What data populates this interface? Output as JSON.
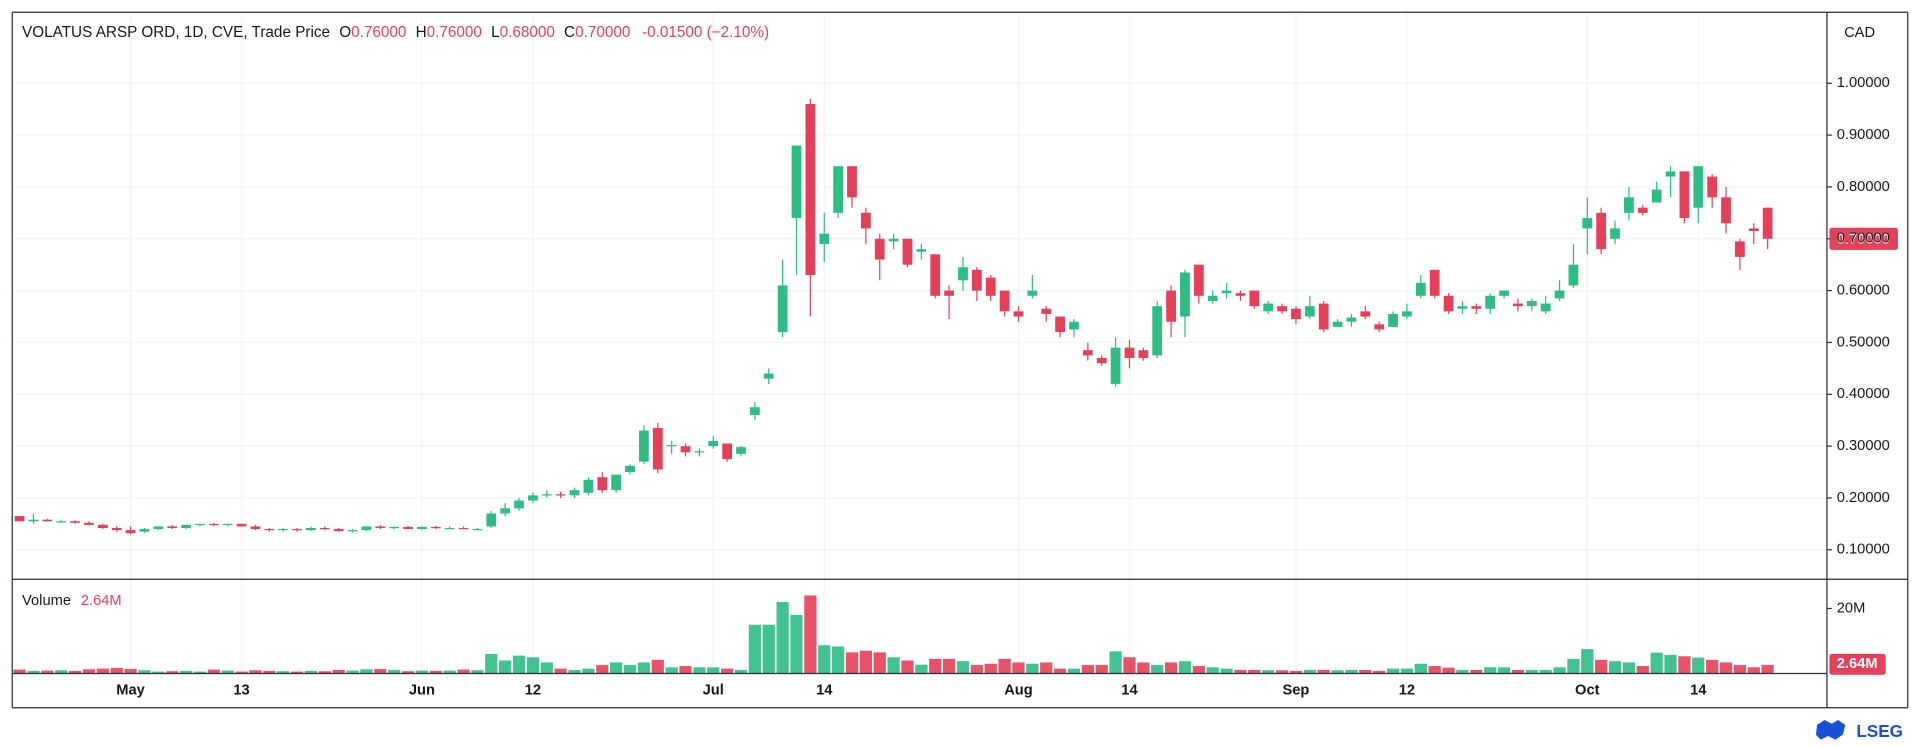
{
  "header": {
    "title": "VOLATUS ARSP ORD, 1D, CVE, Trade Price",
    "open_label": "O",
    "open": "0.76000",
    "high_label": "H",
    "high": "0.76000",
    "low_label": "L",
    "low": "0.68000",
    "close_label": "C",
    "close": "0.70000",
    "change": "-0.01500 (−2.10%)",
    "currency": "CAD",
    "volume_label": "Volume",
    "volume_value": "2.64M",
    "price_badge": "0.70000",
    "brand": "LSEG"
  },
  "chart_data": {
    "type": "candlestick",
    "up_color": "#2ebd85",
    "down_color": "#e5405a",
    "grid": true,
    "categories": [
      null,
      null,
      null,
      null,
      null,
      null,
      null,
      null,
      "May",
      null,
      null,
      null,
      null,
      null,
      null,
      null,
      "13",
      null,
      null,
      null,
      null,
      null,
      null,
      null,
      null,
      null,
      null,
      null,
      null,
      "Jun",
      null,
      null,
      null,
      null,
      null,
      null,
      null,
      "12",
      null,
      null,
      null,
      null,
      null,
      null,
      null,
      null,
      null,
      null,
      null,
      null,
      "Jul",
      null,
      null,
      null,
      null,
      null,
      null,
      null,
      "14",
      null,
      null,
      null,
      null,
      null,
      null,
      null,
      null,
      null,
      null,
      null,
      null,
      null,
      "Aug",
      null,
      null,
      null,
      null,
      null,
      null,
      null,
      "14",
      null,
      null,
      null,
      null,
      null,
      null,
      null,
      null,
      null,
      null,
      null,
      "Sep",
      null,
      null,
      null,
      null,
      null,
      null,
      null,
      "12",
      null,
      null,
      null,
      null,
      null,
      null,
      null,
      null,
      null,
      null,
      null,
      null,
      "Oct",
      null,
      null,
      null,
      null,
      null,
      null,
      null,
      "14",
      null,
      null,
      null,
      null,
      null
    ],
    "open": [
      0.165,
      0.155,
      0.158,
      0.155,
      0.155,
      0.152,
      0.148,
      0.142,
      0.138,
      0.135,
      0.14,
      0.145,
      0.142,
      0.148,
      0.15,
      0.148,
      0.15,
      0.145,
      0.14,
      0.138,
      0.14,
      0.138,
      0.142,
      0.14,
      0.136,
      0.138,
      0.145,
      0.142,
      0.144,
      0.14,
      0.144,
      0.142,
      0.142,
      0.14,
      0.145,
      0.17,
      0.18,
      0.195,
      0.205,
      0.207,
      0.205,
      0.21,
      0.24,
      0.215,
      0.25,
      0.27,
      0.335,
      0.3,
      0.3,
      0.288,
      0.3,
      0.305,
      0.285,
      0.36,
      0.43,
      0.52,
      0.74,
      0.96,
      0.69,
      0.75,
      0.84,
      0.75,
      0.7,
      0.695,
      0.7,
      0.675,
      0.67,
      0.6,
      0.62,
      0.64,
      0.625,
      0.6,
      0.56,
      0.59,
      0.565,
      0.55,
      0.525,
      0.485,
      0.47,
      0.42,
      0.49,
      0.485,
      0.475,
      0.6,
      0.55,
      0.65,
      0.58,
      0.595,
      0.595,
      0.6,
      0.56,
      0.57,
      0.565,
      0.55,
      0.575,
      0.53,
      0.54,
      0.56,
      0.535,
      0.53,
      0.55,
      0.59,
      0.64,
      0.59,
      0.565,
      0.57,
      0.565,
      0.59,
      0.575,
      0.57,
      0.56,
      0.585,
      0.61,
      0.72,
      0.75,
      0.7,
      0.75,
      0.76,
      0.77,
      0.82,
      0.83,
      0.76,
      0.82,
      0.78,
      0.695,
      0.72,
      0.76
    ],
    "high": [
      0.165,
      0.17,
      0.16,
      0.158,
      0.157,
      0.155,
      0.15,
      0.145,
      0.145,
      0.142,
      0.145,
      0.148,
      0.148,
      0.15,
      0.152,
      0.15,
      0.15,
      0.148,
      0.142,
      0.142,
      0.142,
      0.145,
      0.145,
      0.142,
      0.14,
      0.145,
      0.148,
      0.145,
      0.146,
      0.145,
      0.146,
      0.145,
      0.145,
      0.142,
      0.175,
      0.19,
      0.2,
      0.21,
      0.215,
      0.212,
      0.22,
      0.24,
      0.25,
      0.245,
      0.265,
      0.34,
      0.345,
      0.31,
      0.305,
      0.295,
      0.32,
      0.305,
      0.3,
      0.385,
      0.45,
      0.66,
      0.88,
      0.97,
      0.75,
      0.84,
      0.84,
      0.76,
      0.71,
      0.71,
      0.7,
      0.69,
      0.67,
      0.61,
      0.665,
      0.645,
      0.63,
      0.6,
      0.57,
      0.63,
      0.57,
      0.55,
      0.545,
      0.5,
      0.475,
      0.51,
      0.505,
      0.49,
      0.58,
      0.61,
      0.64,
      0.65,
      0.6,
      0.615,
      0.6,
      0.6,
      0.58,
      0.575,
      0.57,
      0.59,
      0.58,
      0.545,
      0.555,
      0.57,
      0.54,
      0.56,
      0.575,
      0.63,
      0.64,
      0.595,
      0.58,
      0.575,
      0.595,
      0.6,
      0.585,
      0.585,
      0.59,
      0.62,
      0.69,
      0.78,
      0.76,
      0.735,
      0.8,
      0.765,
      0.81,
      0.84,
      0.83,
      0.84,
      0.825,
      0.8,
      0.7,
      0.73,
      0.76
    ],
    "low": [
      0.155,
      0.15,
      0.155,
      0.152,
      0.15,
      0.148,
      0.14,
      0.135,
      0.13,
      0.132,
      0.138,
      0.14,
      0.14,
      0.145,
      0.145,
      0.145,
      0.145,
      0.138,
      0.135,
      0.135,
      0.135,
      0.136,
      0.138,
      0.135,
      0.133,
      0.136,
      0.14,
      0.14,
      0.14,
      0.138,
      0.14,
      0.14,
      0.14,
      0.138,
      0.142,
      0.165,
      0.175,
      0.19,
      0.2,
      0.2,
      0.2,
      0.205,
      0.21,
      0.21,
      0.245,
      0.265,
      0.248,
      0.285,
      0.28,
      0.28,
      0.295,
      0.27,
      0.28,
      0.35,
      0.42,
      0.51,
      0.63,
      0.55,
      0.655,
      0.74,
      0.76,
      0.69,
      0.62,
      0.68,
      0.645,
      0.66,
      0.585,
      0.545,
      0.6,
      0.58,
      0.58,
      0.55,
      0.54,
      0.585,
      0.54,
      0.51,
      0.51,
      0.465,
      0.455,
      0.415,
      0.45,
      0.465,
      0.47,
      0.51,
      0.51,
      0.575,
      0.575,
      0.585,
      0.58,
      0.565,
      0.555,
      0.555,
      0.535,
      0.545,
      0.52,
      0.53,
      0.53,
      0.545,
      0.52,
      0.53,
      0.545,
      0.585,
      0.585,
      0.555,
      0.555,
      0.555,
      0.555,
      0.585,
      0.56,
      0.56,
      0.555,
      0.58,
      0.605,
      0.67,
      0.67,
      0.69,
      0.735,
      0.745,
      0.77,
      0.78,
      0.73,
      0.73,
      0.76,
      0.71,
      0.64,
      0.69,
      0.68
    ],
    "close": [
      0.155,
      0.158,
      0.155,
      0.155,
      0.152,
      0.148,
      0.142,
      0.138,
      0.132,
      0.14,
      0.145,
      0.142,
      0.148,
      0.15,
      0.148,
      0.15,
      0.145,
      0.14,
      0.138,
      0.14,
      0.138,
      0.142,
      0.14,
      0.136,
      0.138,
      0.145,
      0.142,
      0.144,
      0.14,
      0.144,
      0.142,
      0.142,
      0.14,
      0.14,
      0.17,
      0.18,
      0.195,
      0.205,
      0.207,
      0.205,
      0.215,
      0.235,
      0.215,
      0.245,
      0.262,
      0.33,
      0.255,
      0.302,
      0.288,
      0.29,
      0.31,
      0.275,
      0.298,
      0.375,
      0.44,
      0.61,
      0.88,
      0.63,
      0.71,
      0.84,
      0.78,
      0.72,
      0.66,
      0.7,
      0.65,
      0.68,
      0.59,
      0.59,
      0.645,
      0.6,
      0.59,
      0.56,
      0.55,
      0.6,
      0.555,
      0.52,
      0.54,
      0.475,
      0.46,
      0.49,
      0.47,
      0.47,
      0.57,
      0.54,
      0.635,
      0.59,
      0.59,
      0.6,
      0.59,
      0.57,
      0.575,
      0.56,
      0.545,
      0.57,
      0.525,
      0.54,
      0.548,
      0.55,
      0.525,
      0.555,
      0.56,
      0.615,
      0.59,
      0.56,
      0.57,
      0.565,
      0.59,
      0.6,
      0.57,
      0.58,
      0.575,
      0.6,
      0.65,
      0.74,
      0.68,
      0.72,
      0.78,
      0.75,
      0.795,
      0.83,
      0.74,
      0.84,
      0.78,
      0.73,
      0.665,
      0.715,
      0.7
    ],
    "volume": [
      1.2,
      0.8,
      0.9,
      1.0,
      0.8,
      1.3,
      1.5,
      1.7,
      1.4,
      1.0,
      0.6,
      0.7,
      0.8,
      0.6,
      1.2,
      0.9,
      0.6,
      1.0,
      0.8,
      0.7,
      0.6,
      0.8,
      0.7,
      1.1,
      0.9,
      1.3,
      1.4,
      1.1,
      0.7,
      0.9,
      0.8,
      0.9,
      1.2,
      1.0,
      6.0,
      4.0,
      5.5,
      5.0,
      3.4,
      1.5,
      1.1,
      1.5,
      2.6,
      3.4,
      2.6,
      3.4,
      4.2,
      1.9,
      2.3,
      1.9,
      1.9,
      1.5,
      1.1,
      15.0,
      15.0,
      22.0,
      18.0,
      24.0,
      8.7,
      8.3,
      6.5,
      7.0,
      6.5,
      5.0,
      4.0,
      2.7,
      4.5,
      4.5,
      3.8,
      2.6,
      3.0,
      4.5,
      3.4,
      3.0,
      3.4,
      1.5,
      1.5,
      2.6,
      2.6,
      6.8,
      5.0,
      3.4,
      2.6,
      3.4,
      3.8,
      2.3,
      1.9,
      1.5,
      1.1,
      1.1,
      1.0,
      1.0,
      0.8,
      1.1,
      1.1,
      1.0,
      1.1,
      1.1,
      0.8,
      1.5,
      1.5,
      3.0,
      2.3,
      1.8,
      1.1,
      1.1,
      1.9,
      1.9,
      1.1,
      1.1,
      1.1,
      1.9,
      4.5,
      7.5,
      4.2,
      3.8,
      3.4,
      2.3,
      6.4,
      5.7,
      5.3,
      4.9,
      4.2,
      3.4,
      2.6,
      1.9,
      2.64
    ],
    "ylim": [
      0.0432,
      1.137
    ],
    "yticks": [
      {
        "value": 0.1,
        "label": "0.10000"
      },
      {
        "value": 0.2,
        "label": "0.20000"
      },
      {
        "value": 0.3,
        "label": "0.30000"
      },
      {
        "value": 0.4,
        "label": "0.40000"
      },
      {
        "value": 0.5,
        "label": "0.50000"
      },
      {
        "value": 0.6,
        "label": "0.60000"
      },
      {
        "value": 0.7,
        "label": "0.70000"
      },
      {
        "value": 0.8,
        "label": "0.80000"
      },
      {
        "value": 0.9,
        "label": "0.90000"
      },
      {
        "value": 1.0,
        "label": "1.00000"
      }
    ],
    "y2lim": [
      0,
      29
    ],
    "y2ticks": [
      {
        "value": 20,
        "label": "20M"
      }
    ]
  }
}
